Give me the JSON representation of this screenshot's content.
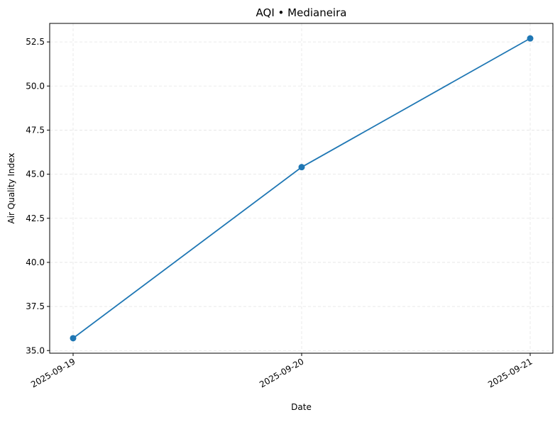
{
  "chart_data": {
    "type": "line",
    "title": "AQI • Medianeira",
    "xlabel": "Date",
    "ylabel": "Air Quality Index",
    "x": [
      "2025-09-19",
      "2025-09-20",
      "2025-09-21"
    ],
    "series": [
      {
        "values": [
          35.7,
          45.4,
          52.7
        ],
        "color": "#1f77b4",
        "marker": "circle"
      }
    ],
    "ylim": [
      34.85,
      53.55
    ],
    "yticks": [
      35.0,
      37.5,
      40.0,
      42.5,
      45.0,
      47.5,
      50.0,
      52.5
    ],
    "ytick_labels": [
      "35.0",
      "37.5",
      "40.0",
      "42.5",
      "45.0",
      "47.5",
      "50.0",
      "52.5"
    ],
    "grid": true,
    "grid_style": "dashed"
  }
}
